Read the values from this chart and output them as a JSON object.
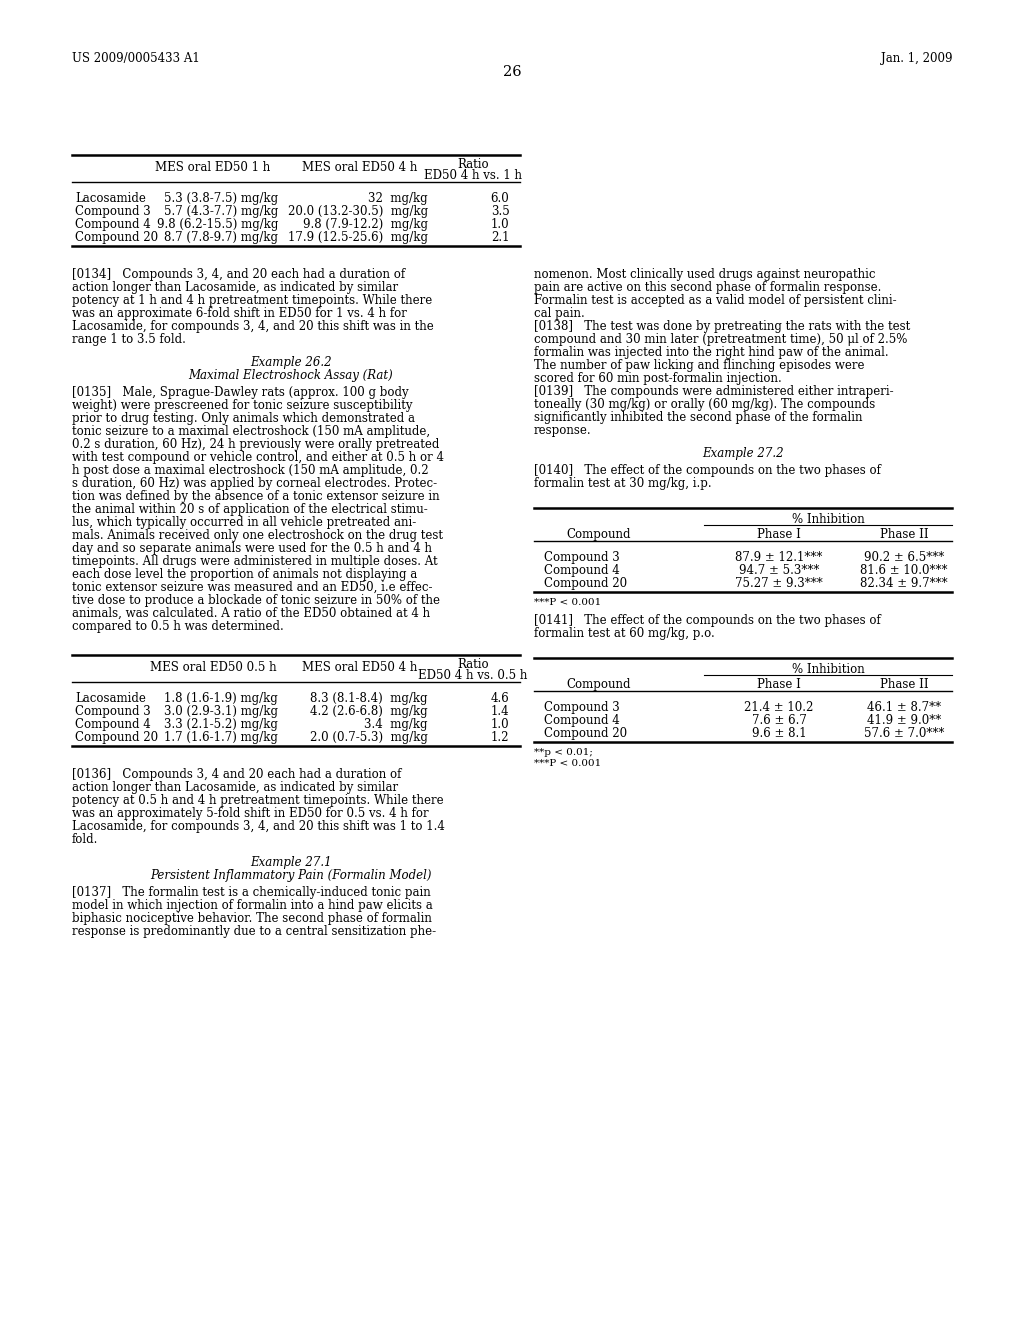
{
  "header_left": "US 2009/0005433 A1",
  "header_right": "Jan. 1, 2009",
  "page_number": "26",
  "background_color": "#ffffff",
  "table1_rows": [
    [
      "Lacosamide",
      "5.3 (3.8-7.5) mg/kg",
      "32  mg/kg",
      "6.0"
    ],
    [
      "Compound 3",
      "5.7 (4.3-7.7) mg/kg",
      "20.0 (13.2-30.5)  mg/kg",
      "3.5"
    ],
    [
      "Compound 4",
      "9.8 (6.2-15.5) mg/kg",
      "9.8 (7.9-12.2)  mg/kg",
      "1.0"
    ],
    [
      "Compound 20",
      "8.7 (7.8-9.7) mg/kg",
      "17.9 (12.5-25.6)  mg/kg",
      "2.1"
    ]
  ],
  "table3_rows": [
    [
      "Lacosamide",
      "1.8 (1.6-1.9) mg/kg",
      "8.3 (8.1-8.4)  mg/kg",
      "4.6"
    ],
    [
      "Compound 3",
      "3.0 (2.9-3.1) mg/kg",
      "4.2 (2.6-6.8)  mg/kg",
      "1.4"
    ],
    [
      "Compound 4",
      "3.3 (2.1-5.2) mg/kg",
      "3.4  mg/kg",
      "1.0"
    ],
    [
      "Compound 20",
      "1.7 (1.6-1.7) mg/kg",
      "2.0 (0.7-5.3)  mg/kg",
      "1.2"
    ]
  ],
  "table2_rows": [
    [
      "Compound 3",
      "87.9 ± 12.1***",
      "90.2 ± 6.5***"
    ],
    [
      "Compound 4",
      "94.7 ± 5.3***",
      "81.6 ± 10.0***"
    ],
    [
      "Compound 20",
      "75.27 ± 9.3***",
      "82.34 ± 9.7***"
    ]
  ],
  "table2_footnote": "***P < 0.001",
  "table4_rows": [
    [
      "Compound 3",
      "21.4 ± 10.2",
      "46.1 ± 8.7**"
    ],
    [
      "Compound 4",
      "7.6 ± 6.7",
      "41.9 ± 9.0**"
    ],
    [
      "Compound 20",
      "9.6 ± 8.1",
      "57.6 ± 7.0***"
    ]
  ],
  "table4_footnote": "**p < 0.01;\n***P < 0.001",
  "left_col_lines": [
    {
      "tag": "para",
      "lines": [
        "[0134]   Compounds 3, 4, and 20 each had a duration of",
        "action longer than Lacosamide, as indicated by similar",
        "potency at 1 h and 4 h pretreatment timepoints. While there",
        "was an approximate 6-fold shift in ED50 for 1 vs. 4 h for",
        "Lacosamide, for compounds 3, 4, and 20 this shift was in the",
        "range 1 to 3.5 fold."
      ]
    },
    {
      "tag": "vspace",
      "size": 10
    },
    {
      "tag": "center",
      "text": "Example 26.2"
    },
    {
      "tag": "center",
      "text": "Maximal Electroshock Assay (Rat)"
    },
    {
      "tag": "vspace",
      "size": 4
    },
    {
      "tag": "para",
      "lines": [
        "[0135]   Male, Sprague-Dawley rats (approx. 100 g body",
        "weight) were prescreened for tonic seizure susceptibility",
        "prior to drug testing. Only animals which demonstrated a",
        "tonic seizure to a maximal electroshock (150 mA amplitude,",
        "0.2 s duration, 60 Hz), 24 h previously were orally pretreated",
        "with test compound or vehicle control, and either at 0.5 h or 4",
        "h post dose a maximal electroshock (150 mA amplitude, 0.2",
        "s duration, 60 Hz) was applied by corneal electrodes. Protec-",
        "tion was defined by the absence of a tonic extensor seizure in",
        "the animal within 20 s of application of the electrical stimu-",
        "lus, which typically occurred in all vehicle pretreated ani-",
        "mals. Animals received only one electroshock on the drug test",
        "day and so separate animals were used for the 0.5 h and 4 h",
        "timepoints. All drugs were administered in multiple doses. At",
        "each dose level the proportion of animals not displaying a",
        "tonic extensor seizure was measured and an ED50, i.e effec-",
        "tive dose to produce a blockade of tonic seizure in 50% of the",
        "animals, was calculated. A ratio of the ED50 obtained at 4 h",
        "compared to 0.5 h was determined."
      ]
    }
  ],
  "left_col2_lines": [
    {
      "tag": "para",
      "lines": [
        "[0136]   Compounds 3, 4 and 20 each had a duration of",
        "action longer than Lacosamide, as indicated by similar",
        "potency at 0.5 h and 4 h pretreatment timepoints. While there",
        "was an approximately 5-fold shift in ED50 for 0.5 vs. 4 h for",
        "Lacosamide, for compounds 3, 4, and 20 this shift was 1 to 1.4",
        "fold."
      ]
    },
    {
      "tag": "vspace",
      "size": 10
    },
    {
      "tag": "center",
      "text": "Example 27.1"
    },
    {
      "tag": "center",
      "text": "Persistent Inflammatory Pain (Formalin Model)"
    },
    {
      "tag": "vspace",
      "size": 4
    },
    {
      "tag": "para",
      "lines": [
        "[0137]   The formalin test is a chemically-induced tonic pain",
        "model in which injection of formalin into a hind paw elicits a",
        "biphasic nociceptive behavior. The second phase of formalin",
        "response is predominantly due to a central sensitization phe-"
      ]
    }
  ],
  "right_col_lines": [
    {
      "tag": "para",
      "lines": [
        "nomenon. Most clinically used drugs against neuropathic",
        "pain are active on this second phase of formalin response.",
        "Formalin test is accepted as a valid model of persistent clini-",
        "cal pain."
      ]
    },
    {
      "tag": "para",
      "lines": [
        "[0138]   The test was done by pretreating the rats with the test",
        "compound and 30 min later (pretreatment time), 50 μl of 2.5%",
        "formalin was injected into the right hind paw of the animal.",
        "The number of paw licking and flinching episodes were",
        "scored for 60 min post-formalin injection."
      ]
    },
    {
      "tag": "para",
      "lines": [
        "[0139]   The compounds were administered either intraperi-",
        "toneally (30 mg/kg) or orally (60 mg/kg). The compounds",
        "significantly inhibited the second phase of the formalin",
        "response."
      ]
    },
    {
      "tag": "vspace",
      "size": 10
    },
    {
      "tag": "center",
      "text": "Example 27.2"
    },
    {
      "tag": "vspace",
      "size": 4
    },
    {
      "tag": "para",
      "lines": [
        "[0140]   The effect of the compounds on the two phases of",
        "formalin test at 30 mg/kg, i.p."
      ]
    }
  ],
  "right_col2_lines": [
    {
      "tag": "para",
      "lines": [
        "[0141]   The effect of the compounds on the two phases of",
        "formalin test at 60 mg/kg, p.o."
      ]
    }
  ]
}
